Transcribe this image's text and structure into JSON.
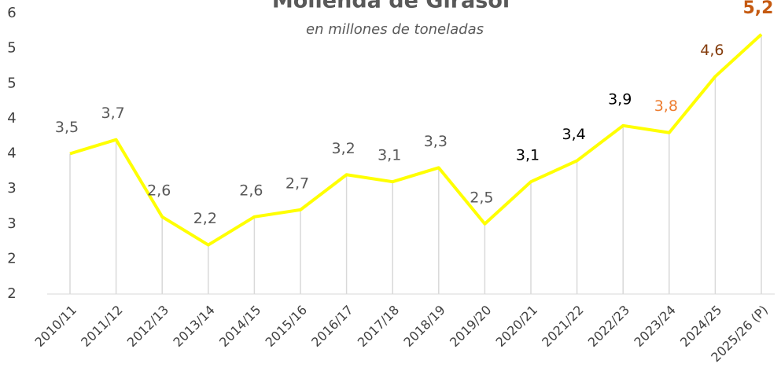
{
  "chart_data": {
    "type": "line",
    "title": "Molienda de Girasol",
    "subtitle": "en millones de toneladas",
    "categories": [
      "2010/11",
      "2011/12",
      "2012/13",
      "2013/14",
      "2014/15",
      "2015/16",
      "2016/17",
      "2017/18",
      "2018/19",
      "2019/20",
      "2020/21",
      "2021/22",
      "2022/23",
      "2023/24",
      "2024/25",
      "2025/26 (P)"
    ],
    "series": [
      {
        "name": "Molienda",
        "color": "#ffff00",
        "values": [
          3.5,
          3.7,
          2.6,
          2.2,
          2.6,
          2.7,
          3.2,
          3.1,
          3.3,
          2.5,
          3.1,
          3.4,
          3.9,
          3.8,
          4.6,
          5.2
        ],
        "value_labels": [
          "3,5",
          "3,7",
          "2,6",
          "2,2",
          "2,6",
          "2,7",
          "3,2",
          "3,1",
          "3,3",
          "2,5",
          "3,1",
          "3,4",
          "3,9",
          "3,8",
          "4,6",
          "5,2"
        ],
        "label_colors": [
          "#595959",
          "#595959",
          "#595959",
          "#595959",
          "#595959",
          "#595959",
          "#595959",
          "#595959",
          "#595959",
          "#595959",
          "#000000",
          "#000000",
          "#000000",
          "#ed7d31",
          "#843c0c",
          "#c55a11"
        ]
      }
    ],
    "ylim": [
      1.5,
      5.5
    ],
    "yticks": [
      {
        "value": 1.5,
        "label": "2"
      },
      {
        "value": 2,
        "label": "2"
      },
      {
        "value": 2.5,
        "label": "3"
      },
      {
        "value": 3,
        "label": "3"
      },
      {
        "value": 3.5,
        "label": "4"
      },
      {
        "value": 4,
        "label": "4"
      },
      {
        "value": 4.5,
        "label": "5"
      },
      {
        "value": 5,
        "label": "5"
      },
      {
        "value": 5.5,
        "label": "6"
      }
    ],
    "drop_lines": true
  }
}
